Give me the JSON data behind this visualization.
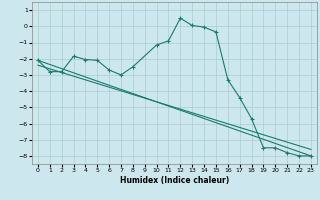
{
  "xlabel": "Humidex (Indice chaleur)",
  "xlim": [
    -0.5,
    23.5
  ],
  "ylim": [
    -8.5,
    1.5
  ],
  "yticks": [
    1,
    0,
    -1,
    -2,
    -3,
    -4,
    -5,
    -6,
    -7,
    -8
  ],
  "xticks": [
    0,
    1,
    2,
    3,
    4,
    5,
    6,
    7,
    8,
    9,
    10,
    11,
    12,
    13,
    14,
    15,
    16,
    17,
    18,
    19,
    20,
    21,
    22,
    23
  ],
  "bg_color": "#cce8ee",
  "grid_color": "#aacccc",
  "line_color": "#1a7a6e",
  "line1_x": [
    0,
    1,
    2,
    3,
    4,
    5,
    6,
    7,
    8,
    10,
    11,
    12,
    13,
    14,
    15,
    16,
    17,
    18,
    19,
    20,
    21,
    22,
    23
  ],
  "line1_y": [
    -2.1,
    -2.8,
    -2.8,
    -1.85,
    -2.05,
    -2.1,
    -2.7,
    -3.0,
    -2.5,
    -1.15,
    -0.9,
    0.5,
    0.05,
    -0.05,
    -0.35,
    -3.3,
    -4.4,
    -5.7,
    -7.5,
    -7.5,
    -7.8,
    -8.0,
    -8.0
  ],
  "line2_x": [
    0,
    23
  ],
  "line2_y": [
    -2.1,
    -8.0
  ],
  "line3_x": [
    0,
    23
  ],
  "line3_y": [
    -2.4,
    -7.6
  ]
}
